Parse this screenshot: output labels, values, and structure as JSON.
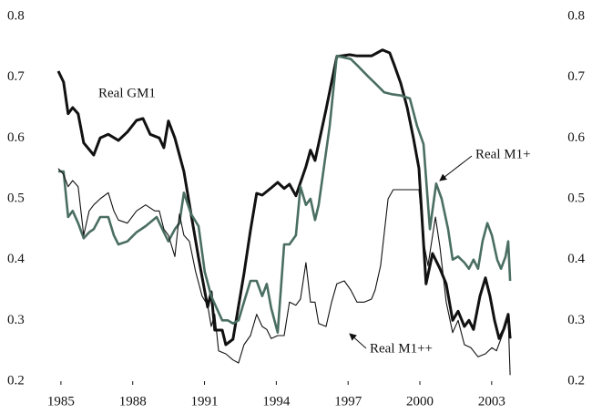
{
  "chart_data": {
    "type": "line",
    "xlim": [
      1983.9,
      2005.29
    ],
    "xticks": [
      1985,
      1988,
      1991,
      1994,
      1997,
      2000,
      2003
    ],
    "ylim": [
      0.2,
      0.8
    ],
    "yticks": [
      0.2,
      0.3,
      0.4,
      0.5,
      0.6,
      0.7,
      0.8
    ],
    "y2lim": [
      0.2,
      0.8
    ],
    "y2ticks": [
      0.2,
      0.3,
      0.4,
      0.5,
      0.6,
      0.7,
      0.8
    ],
    "series": [
      {
        "name": "Real GM1",
        "color": "#111111",
        "x": [
          1984.89,
          1985.11,
          1985.3,
          1985.49,
          1985.72,
          1985.95,
          1986.37,
          1986.64,
          1986.98,
          1987.4,
          1987.78,
          1988.16,
          1988.43,
          1988.73,
          1989.11,
          1989.3,
          1989.49,
          1989.76,
          1990.14,
          1990.44,
          1990.75,
          1991.13,
          1991.28,
          1991.43,
          1991.74,
          1991.89,
          1992.19,
          1992.65,
          1992.92,
          1993.18,
          1993.41,
          1993.79,
          1994.06,
          1994.33,
          1994.55,
          1994.82,
          1995.24,
          1995.43,
          1995.62,
          1996.08,
          1996.53,
          1997.07,
          1997.37,
          1997.68,
          1997.98,
          1998.21,
          1998.44,
          1998.74,
          1998.93,
          1999.2,
          1999.47,
          1999.73,
          1999.96,
          2000.26,
          2000.53,
          2000.84,
          2001.1,
          2001.37,
          2001.6,
          2001.86,
          2002.05,
          2002.24,
          2002.51,
          2002.74,
          2002.93,
          2003.12,
          2003.31,
          2003.5,
          2003.69,
          2003.77
        ],
        "values": [
          0.71,
          0.692,
          0.64,
          0.65,
          0.64,
          0.592,
          0.572,
          0.6,
          0.606,
          0.596,
          0.61,
          0.629,
          0.632,
          0.606,
          0.6,
          0.584,
          0.628,
          0.6,
          0.545,
          0.475,
          0.403,
          0.322,
          0.347,
          0.284,
          0.284,
          0.26,
          0.269,
          0.377,
          0.448,
          0.509,
          0.506,
          0.518,
          0.527,
          0.517,
          0.524,
          0.505,
          0.553,
          0.58,
          0.563,
          0.647,
          0.734,
          0.737,
          0.735,
          0.735,
          0.735,
          0.74,
          0.745,
          0.74,
          0.72,
          0.69,
          0.65,
          0.6,
          0.55,
          0.36,
          0.41,
          0.385,
          0.36,
          0.3,
          0.315,
          0.29,
          0.3,
          0.285,
          0.34,
          0.37,
          0.34,
          0.3,
          0.27,
          0.285,
          0.31,
          0.27
        ]
      },
      {
        "name": "Real M1+",
        "color": "#4a6e62",
        "x": [
          1984.89,
          1985.11,
          1985.3,
          1985.49,
          1985.72,
          1985.95,
          1986.18,
          1986.37,
          1986.64,
          1986.98,
          1987.21,
          1987.4,
          1987.78,
          1988.16,
          1988.54,
          1989.0,
          1989.3,
          1989.49,
          1989.76,
          1989.95,
          1990.14,
          1990.44,
          1990.75,
          1991.01,
          1991.28,
          1991.51,
          1991.74,
          1991.97,
          1992.19,
          1992.42,
          1992.65,
          1992.92,
          1993.18,
          1993.41,
          1993.6,
          1993.79,
          1994.06,
          1994.33,
          1994.55,
          1994.82,
          1995.01,
          1995.24,
          1995.43,
          1995.62,
          1995.77,
          1996.23,
          1996.53,
          1997.11,
          1997.37,
          1997.87,
          1998.13,
          1998.51,
          1998.82,
          1999.2,
          1999.58,
          1999.88,
          2000.15,
          2000.42,
          2000.68,
          2000.91,
          2001.18,
          2001.37,
          2001.6,
          2001.86,
          2002.05,
          2002.24,
          2002.43,
          2002.62,
          2002.82,
          2003.01,
          2003.23,
          2003.39,
          2003.58,
          2003.69,
          2003.77
        ],
        "values": [
          0.545,
          0.545,
          0.47,
          0.48,
          0.46,
          0.435,
          0.445,
          0.45,
          0.47,
          0.47,
          0.44,
          0.425,
          0.43,
          0.445,
          0.455,
          0.47,
          0.445,
          0.43,
          0.45,
          0.46,
          0.51,
          0.475,
          0.455,
          0.38,
          0.34,
          0.32,
          0.3,
          0.3,
          0.295,
          0.3,
          0.33,
          0.365,
          0.365,
          0.34,
          0.36,
          0.32,
          0.28,
          0.425,
          0.425,
          0.44,
          0.52,
          0.49,
          0.5,
          0.465,
          0.49,
          0.62,
          0.735,
          0.73,
          0.72,
          0.7,
          0.69,
          0.675,
          0.672,
          0.67,
          0.665,
          0.62,
          0.59,
          0.45,
          0.525,
          0.5,
          0.45,
          0.4,
          0.405,
          0.395,
          0.385,
          0.4,
          0.385,
          0.43,
          0.46,
          0.44,
          0.4,
          0.385,
          0.405,
          0.43,
          0.365
        ]
      },
      {
        "name": "Real M1++",
        "color": "#111111",
        "x": [
          1984.89,
          1985.11,
          1985.3,
          1985.49,
          1985.72,
          1985.95,
          1986.18,
          1986.37,
          1986.64,
          1986.98,
          1987.21,
          1987.4,
          1987.78,
          1988.16,
          1988.54,
          1988.92,
          1989.11,
          1989.3,
          1989.49,
          1989.76,
          1989.95,
          1990.14,
          1990.37,
          1990.63,
          1990.9,
          1991.13,
          1991.28,
          1991.43,
          1991.59,
          1991.89,
          1992.19,
          1992.42,
          1992.65,
          1992.92,
          1993.18,
          1993.41,
          1993.6,
          1993.79,
          1994.06,
          1994.33,
          1994.55,
          1994.82,
          1995.01,
          1995.24,
          1995.43,
          1995.62,
          1995.77,
          1996.08,
          1996.31,
          1996.53,
          1996.84,
          1997.11,
          1997.37,
          1997.68,
          1997.98,
          1998.13,
          1998.36,
          1998.67,
          1998.89,
          1999.2,
          1999.47,
          1999.96,
          2000.15,
          2000.34,
          2000.65,
          2000.84,
          2001.1,
          2001.37,
          2001.6,
          2001.86,
          2002.13,
          2002.43,
          2002.74,
          2003.01,
          2003.2,
          2003.39,
          2003.58,
          2003.69,
          2003.77
        ],
        "values": [
          0.55,
          0.54,
          0.52,
          0.53,
          0.52,
          0.44,
          0.48,
          0.49,
          0.5,
          0.51,
          0.48,
          0.465,
          0.46,
          0.48,
          0.49,
          0.48,
          0.48,
          0.45,
          0.44,
          0.405,
          0.475,
          0.44,
          0.43,
          0.38,
          0.34,
          0.325,
          0.29,
          0.31,
          0.25,
          0.245,
          0.235,
          0.23,
          0.26,
          0.275,
          0.31,
          0.29,
          0.285,
          0.27,
          0.275,
          0.275,
          0.33,
          0.325,
          0.335,
          0.395,
          0.33,
          0.33,
          0.295,
          0.29,
          0.33,
          0.36,
          0.365,
          0.35,
          0.33,
          0.33,
          0.335,
          0.35,
          0.39,
          0.5,
          0.515,
          0.515,
          0.515,
          0.515,
          0.43,
          0.39,
          0.47,
          0.42,
          0.33,
          0.28,
          0.3,
          0.26,
          0.255,
          0.24,
          0.245,
          0.255,
          0.25,
          0.27,
          0.29,
          0.305,
          0.21
        ]
      }
    ]
  }
}
